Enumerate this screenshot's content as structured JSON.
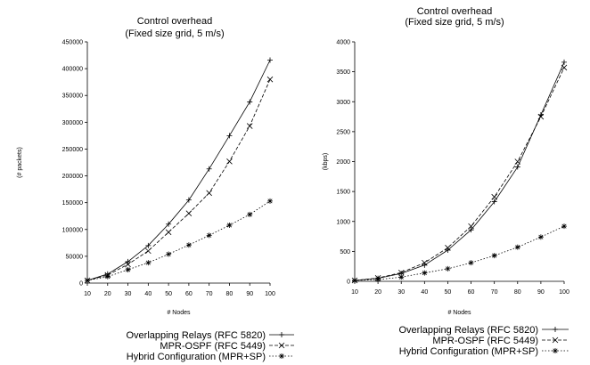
{
  "chart_data": [
    {
      "type": "line",
      "title": "Control overhead",
      "subtitle": "(Fixed size grid, 5 m/s)",
      "xlabel": "# Nodes",
      "ylabel": "(# packets)",
      "x": [
        10,
        20,
        30,
        40,
        50,
        60,
        70,
        80,
        90,
        100
      ],
      "ylim": [
        0,
        450000
      ],
      "yticks": [
        0,
        50000,
        100000,
        150000,
        200000,
        250000,
        300000,
        350000,
        400000,
        450000
      ],
      "grid": false,
      "legend_position": "bottom",
      "series": [
        {
          "name": "Overlapping Relays (RFC 5820)",
          "style": "solid",
          "marker": "plus",
          "values": [
            5000,
            17000,
            40000,
            70000,
            110000,
            155000,
            213000,
            275000,
            338000,
            416000
          ]
        },
        {
          "name": "MPR-OSPF (RFC 5449)",
          "style": "dashed",
          "marker": "x",
          "values": [
            5000,
            15000,
            35000,
            60000,
            95000,
            130000,
            168000,
            227000,
            293000,
            380000
          ]
        },
        {
          "name": "Hybrid Configuration (MPR+SP)",
          "style": "dotted",
          "marker": "star",
          "values": [
            5000,
            12000,
            25000,
            38000,
            54000,
            71000,
            89000,
            108000,
            128000,
            153000
          ]
        }
      ]
    },
    {
      "type": "line",
      "title": "Control overhead",
      "subtitle": "(Fixed size grid, 5 m/s)",
      "xlabel": "# Nodes",
      "ylabel": "(kbps)",
      "x": [
        10,
        20,
        30,
        40,
        50,
        60,
        70,
        80,
        90,
        100
      ],
      "ylim": [
        0,
        4000
      ],
      "yticks": [
        0,
        500,
        1000,
        1500,
        2000,
        2500,
        3000,
        3500,
        4000
      ],
      "grid": false,
      "legend_position": "bottom",
      "series": [
        {
          "name": "Overlapping Relays (RFC 5820)",
          "style": "solid",
          "marker": "plus",
          "values": [
            15,
            50,
            130,
            270,
            520,
            860,
            1330,
            1910,
            2780,
            3660
          ]
        },
        {
          "name": "MPR-OSPF (RFC 5449)",
          "style": "dashed",
          "marker": "x",
          "values": [
            15,
            55,
            145,
            310,
            560,
            920,
            1410,
            2000,
            2750,
            3570
          ]
        },
        {
          "name": "Hybrid Configuration (MPR+SP)",
          "style": "dotted",
          "marker": "star",
          "values": [
            15,
            30,
            70,
            140,
            210,
            310,
            430,
            570,
            740,
            920
          ]
        }
      ]
    }
  ]
}
